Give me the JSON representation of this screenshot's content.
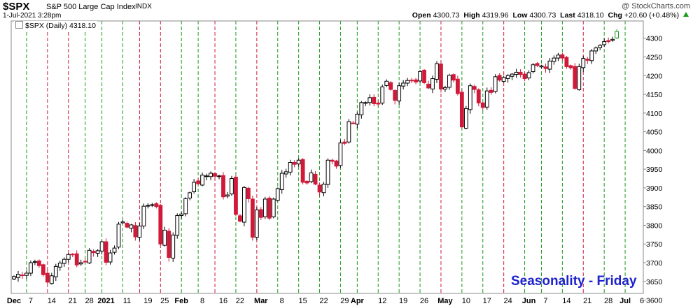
{
  "header": {
    "symbol": "$SPX",
    "description": "S&P 500 Large Cap Index",
    "exchange": "INDX",
    "date": "1-Jul-2021 3:28pm",
    "copyright": "@ StockCharts.com",
    "open_label": "Open",
    "open": "4300.73",
    "high_label": "High",
    "high": "4319.96",
    "low_label": "Low",
    "low": "4300.73",
    "last_label": "Last",
    "last": "4318.10",
    "chg_label": "Chg",
    "chg": "+20.60 (+0.48%)"
  },
  "legend": "$SPX (Daily) 4318.10",
  "annotation": "Seasonality - Friday",
  "colors": {
    "up_candle": "#000000",
    "down_candle": "#d11a3a",
    "last_candle": "#1a9a1a",
    "green_line": "#1a9a1a",
    "red_line": "#d11a3a",
    "annotation": "#1e22cc"
  },
  "chart_data": {
    "type": "candlestick",
    "title": "$SPX (Daily) 4318.10",
    "ylim": [
      3590,
      4340
    ],
    "y_ticks": [
      3600,
      3650,
      3700,
      3750,
      3800,
      3850,
      3900,
      3950,
      4000,
      4050,
      4100,
      4150,
      4200,
      4250,
      4300
    ],
    "x_ticks": [
      {
        "label": "Dec",
        "day": 0
      },
      {
        "label": "7",
        "day": 4
      },
      {
        "label": "14",
        "day": 9
      },
      {
        "label": "21",
        "day": 14
      },
      {
        "label": "28",
        "day": 18
      },
      {
        "label": "2021",
        "day": 22
      },
      {
        "label": "11",
        "day": 27
      },
      {
        "label": "19",
        "day": 32
      },
      {
        "label": "25",
        "day": 36
      },
      {
        "label": "Feb",
        "day": 40
      },
      {
        "label": "8",
        "day": 45
      },
      {
        "label": "16",
        "day": 50
      },
      {
        "label": "22",
        "day": 54
      },
      {
        "label": "Mar",
        "day": 59
      },
      {
        "label": "8",
        "day": 64
      },
      {
        "label": "15",
        "day": 69
      },
      {
        "label": "22",
        "day": 74
      },
      {
        "label": "29",
        "day": 79
      },
      {
        "label": "Apr",
        "day": 82
      },
      {
        "label": "12",
        "day": 88
      },
      {
        "label": "19",
        "day": 93
      },
      {
        "label": "26",
        "day": 98
      },
      {
        "label": "May",
        "day": 103
      },
      {
        "label": "10",
        "day": 108
      },
      {
        "label": "17",
        "day": 113
      },
      {
        "label": "24",
        "day": 118
      },
      {
        "label": "Jun",
        "day": 123
      },
      {
        "label": "7",
        "day": 127
      },
      {
        "label": "14",
        "day": 132
      },
      {
        "label": "21",
        "day": 137
      },
      {
        "label": "28",
        "day": 142
      },
      {
        "label": "Jul",
        "day": 146
      },
      {
        "label": "6",
        "day": 150
      }
    ],
    "friday_lines": [
      {
        "day": 3,
        "color": "green"
      },
      {
        "day": 8,
        "color": "red"
      },
      {
        "day": 13,
        "color": "red"
      },
      {
        "day": 17,
        "color": "green"
      },
      {
        "day": 21,
        "color": "green"
      },
      {
        "day": 26,
        "color": "green"
      },
      {
        "day": 30,
        "color": "red"
      },
      {
        "day": 35,
        "color": "red"
      },
      {
        "day": 40,
        "color": "green"
      },
      {
        "day": 44,
        "color": "green"
      },
      {
        "day": 48,
        "color": "red"
      },
      {
        "day": 53,
        "color": "green"
      },
      {
        "day": 58,
        "color": "red"
      },
      {
        "day": 63,
        "color": "green"
      },
      {
        "day": 68,
        "color": "green"
      },
      {
        "day": 73,
        "color": "green"
      },
      {
        "day": 78,
        "color": "green"
      },
      {
        "day": 82,
        "color": "green"
      },
      {
        "day": 87,
        "color": "green"
      },
      {
        "day": 92,
        "color": "green"
      },
      {
        "day": 97,
        "color": "green"
      },
      {
        "day": 102,
        "color": "red"
      },
      {
        "day": 107,
        "color": "green"
      },
      {
        "day": 112,
        "color": "green"
      },
      {
        "day": 117,
        "color": "red"
      },
      {
        "day": 122,
        "color": "green"
      },
      {
        "day": 126,
        "color": "green"
      },
      {
        "day": 131,
        "color": "green"
      },
      {
        "day": 136,
        "color": "red"
      },
      {
        "day": 141,
        "color": "green"
      },
      {
        "day": 146,
        "color": "green"
      }
    ],
    "closes": [
      3663,
      3669,
      3667,
      3672,
      3700,
      3703,
      3692,
      3668,
      3648,
      3665,
      3690,
      3699,
      3709,
      3722,
      3722,
      3694,
      3700,
      3703,
      3733,
      3727,
      3732,
      3756,
      3701,
      3726,
      3739,
      3803,
      3809,
      3795,
      3801,
      3769,
      3798,
      3851,
      3853,
      3855,
      3850,
      3750,
      3787,
      3714,
      3774,
      3826,
      3830,
      3871,
      3887,
      3915,
      3911,
      3934,
      3932,
      3939,
      3931,
      3932,
      3876,
      3881,
      3925,
      3829,
      3811,
      3901,
      3871,
      3768,
      3841,
      3821,
      3870,
      3819,
      3870,
      3898,
      3939,
      3943,
      3968,
      3963,
      3974,
      3915,
      3913,
      3940,
      3910,
      3889,
      3910,
      3974,
      3971,
      3958,
      4020,
      4019,
      4077,
      4073,
      4097,
      4128,
      4128,
      4141,
      4125,
      4124,
      4170,
      4185,
      4163,
      4134,
      4173,
      4180,
      4187,
      4187,
      4183,
      4211,
      4181,
      4167,
      4192,
      4232,
      4164,
      4168,
      4201,
      4188,
      4152,
      4063,
      4112,
      4173,
      4163,
      4127,
      4115,
      4159,
      4155,
      4197,
      4188,
      4195,
      4200,
      4204,
      4209,
      4203,
      4192,
      4208,
      4229,
      4227,
      4226,
      4219,
      4239,
      4247,
      4255,
      4247,
      4224,
      4221,
      4166,
      4224,
      4246,
      4241,
      4266,
      4274,
      4281,
      4291,
      4291,
      4297,
      4318
    ]
  }
}
